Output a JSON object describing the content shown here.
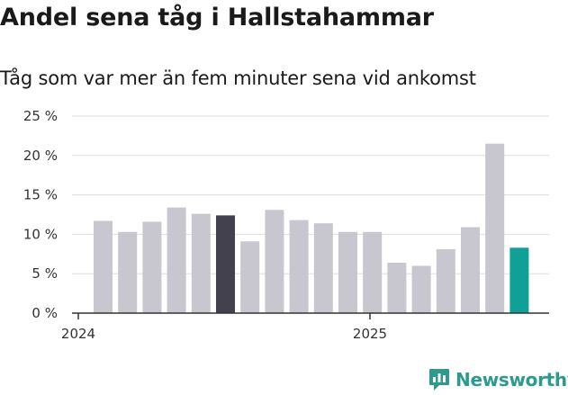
{
  "title": "Andel sena tåg i Hallstahammar",
  "subtitle": "Tåg som var mer än fem minuter sena vid ankomst",
  "brand": {
    "name": "Newsworthy",
    "color": "#2e9a8e",
    "icon": "newsworthy-logo-icon"
  },
  "colors": {
    "bar": "#c8c6cf",
    "highlight_dark": "#43414e",
    "highlight_teal": "#0fa096",
    "grid": "#dddddd",
    "axis": "#333333"
  },
  "chart_data": {
    "type": "bar",
    "title": "Andel sena tåg i Hallstahammar",
    "subtitle": "Tåg som var mer än fem minuter sena vid ankomst",
    "xlabel": "",
    "ylabel": "",
    "ylim": [
      0,
      25
    ],
    "yticks": [
      0,
      5,
      10,
      15,
      20,
      25
    ],
    "ytick_labels": [
      "0 %",
      "5 %",
      "10 %",
      "15 %",
      "20 %",
      "25 %"
    ],
    "xtick_labels": [
      "2024",
      "2025"
    ],
    "grid": true,
    "categories": [
      "2024-01",
      "2024-02",
      "2024-03",
      "2024-04",
      "2024-05",
      "2024-06",
      "2024-07",
      "2024-08",
      "2024-09",
      "2024-10",
      "2024-11",
      "2024-12",
      "2025-01",
      "2025-02",
      "2025-03",
      "2025-04",
      "2025-05",
      "2025-06"
    ],
    "values": [
      11.7,
      10.3,
      11.6,
      13.4,
      12.6,
      12.4,
      9.1,
      13.1,
      11.8,
      11.4,
      10.3,
      10.3,
      6.4,
      6.0,
      8.1,
      10.9,
      21.5,
      8.3
    ],
    "highlight": {
      "5": "dark",
      "17": "teal"
    }
  }
}
